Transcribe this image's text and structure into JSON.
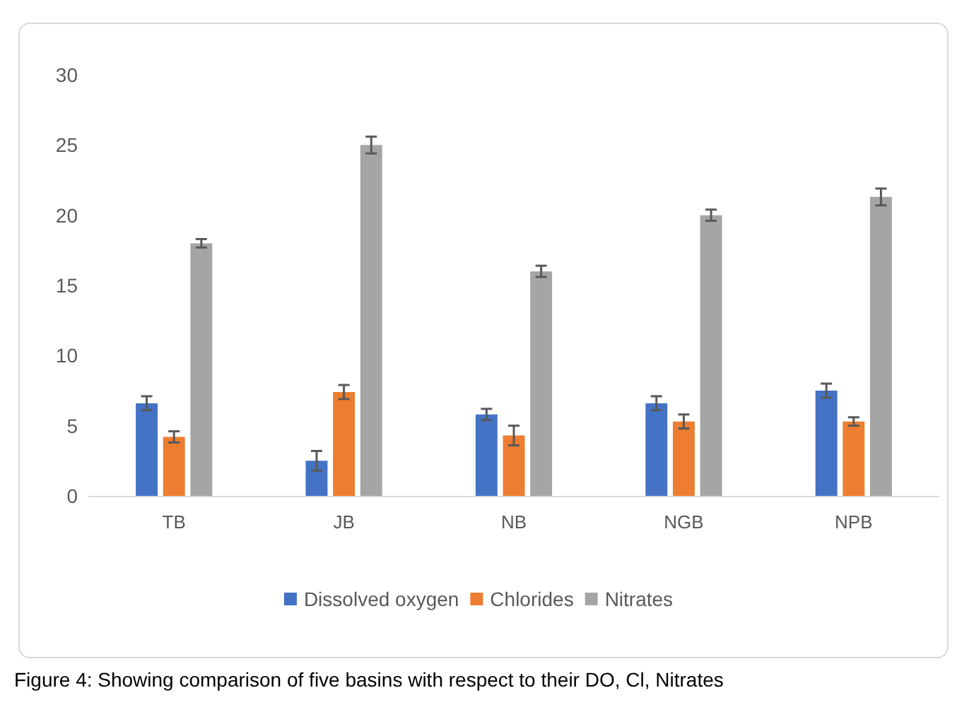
{
  "chart_data": {
    "type": "bar",
    "categories": [
      "TB",
      "JB",
      "NB",
      "NGB",
      "NPB"
    ],
    "series": [
      {
        "name": "Dissolved oxygen",
        "color": "#4472c4",
        "values": [
          6.6,
          2.5,
          5.8,
          6.6,
          7.5
        ],
        "errors": [
          0.5,
          0.7,
          0.4,
          0.5,
          0.5
        ]
      },
      {
        "name": "Chlorides",
        "color": "#ed7d31",
        "values": [
          4.2,
          7.4,
          4.3,
          5.3,
          5.3
        ],
        "errors": [
          0.4,
          0.5,
          0.7,
          0.5,
          0.3
        ]
      },
      {
        "name": "Nitrates",
        "color": "#a5a5a5",
        "values": [
          18,
          25,
          16,
          20,
          21.3
        ],
        "errors": [
          0.3,
          0.6,
          0.4,
          0.4,
          0.6
        ]
      }
    ],
    "ylim": [
      0,
      30
    ],
    "yticks": [
      0,
      5,
      10,
      15,
      20,
      25,
      30
    ],
    "grid": false,
    "legend": "bottom",
    "annotations": [
      "Figure 4: Showing comparison of five basins with respect to their DO, Cl, Nitrates"
    ]
  }
}
